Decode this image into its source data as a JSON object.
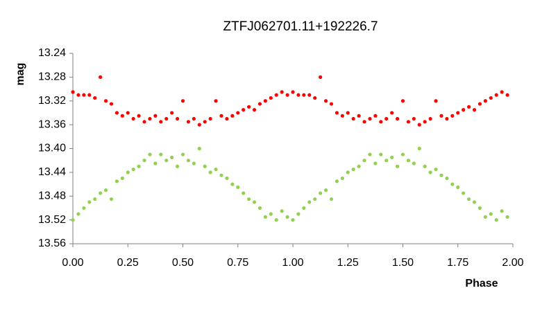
{
  "chart_data": {
    "type": "scatter",
    "title": "ZTFJ062701.11+192226.7",
    "x_label": "Phase",
    "y_label": "mag",
    "xlim": [
      0,
      2
    ],
    "xticks": [
      {
        "value": 0,
        "label": "0.00"
      },
      0.25,
      {
        "value": 0.5,
        "label": "0.50"
      },
      0.75,
      {
        "value": 1,
        "label": "1.00"
      },
      1.25,
      {
        "value": 1.5,
        "label": "1.50"
      },
      1.75,
      {
        "value": 2,
        "label": "2.00"
      }
    ],
    "ylim": [
      13.24,
      13.56
    ],
    "yticks": [
      13.24,
      13.28,
      13.32,
      13.36,
      {
        "value": 13.4,
        "label": "13.40"
      },
      13.44,
      13.48,
      13.52,
      13.56
    ],
    "y_inverted": true,
    "grid": false,
    "x": [
      0,
      0.025,
      0.05,
      0.075,
      0.1,
      0.125,
      0.15,
      0.175,
      0.2,
      0.225,
      0.25,
      0.275,
      0.3,
      0.325,
      0.35,
      0.375,
      0.4,
      0.425,
      0.45,
      0.475,
      0.5,
      0.525,
      0.55,
      0.575,
      0.6,
      0.625,
      0.65,
      0.675,
      0.7,
      0.725,
      0.75,
      0.775,
      0.8,
      0.825,
      0.85,
      0.875,
      0.9,
      0.925,
      0.95,
      0.975,
      1,
      1.025,
      1.05,
      1.075,
      1.1,
      1.125,
      1.15,
      1.175,
      1.2,
      1.225,
      1.25,
      1.275,
      1.3,
      1.325,
      1.35,
      1.375,
      1.4,
      1.425,
      1.45,
      1.475,
      1.5,
      1.525,
      1.55,
      1.575,
      1.6,
      1.625,
      1.65,
      1.675,
      1.7,
      1.725,
      1.75,
      1.775,
      1.8,
      1.825,
      1.85,
      1.875,
      1.9,
      1.925,
      1.95,
      1.975
    ],
    "series": [
      {
        "color": "#ff0000",
        "values": [
          13.305,
          13.31,
          13.31,
          13.31,
          13.315,
          13.28,
          13.32,
          13.325,
          13.34,
          13.345,
          13.34,
          13.35,
          13.345,
          13.355,
          13.35,
          13.345,
          13.355,
          13.35,
          13.34,
          13.35,
          13.32,
          13.355,
          13.35,
          13.36,
          13.355,
          13.35,
          13.32,
          13.345,
          13.35,
          13.345,
          13.34,
          13.335,
          13.33,
          13.335,
          13.325,
          13.32,
          13.315,
          13.31,
          13.305,
          13.31,
          13.305,
          13.31,
          13.31,
          13.31,
          13.315,
          13.28,
          13.32,
          13.325,
          13.34,
          13.345,
          13.34,
          13.35,
          13.345,
          13.355,
          13.35,
          13.345,
          13.355,
          13.35,
          13.34,
          13.35,
          13.32,
          13.355,
          13.35,
          13.36,
          13.355,
          13.35,
          13.32,
          13.345,
          13.35,
          13.345,
          13.34,
          13.335,
          13.33,
          13.335,
          13.325,
          13.32,
          13.315,
          13.31,
          13.305,
          13.31
        ]
      },
      {
        "color": "#92d050",
        "values": [
          13.52,
          13.51,
          13.5,
          13.49,
          13.485,
          13.475,
          13.47,
          13.485,
          13.455,
          13.45,
          13.44,
          13.435,
          13.43,
          13.42,
          13.41,
          13.425,
          13.41,
          13.42,
          13.415,
          13.43,
          13.41,
          13.42,
          13.425,
          13.4,
          13.43,
          13.44,
          13.435,
          13.445,
          13.45,
          13.46,
          13.465,
          13.475,
          13.485,
          13.49,
          13.5,
          13.515,
          13.51,
          13.52,
          13.505,
          13.515,
          13.52,
          13.51,
          13.5,
          13.49,
          13.485,
          13.475,
          13.47,
          13.485,
          13.455,
          13.45,
          13.44,
          13.435,
          13.43,
          13.42,
          13.41,
          13.425,
          13.41,
          13.42,
          13.415,
          13.43,
          13.41,
          13.42,
          13.425,
          13.4,
          13.43,
          13.44,
          13.435,
          13.445,
          13.45,
          13.46,
          13.465,
          13.475,
          13.485,
          13.49,
          13.5,
          13.515,
          13.51,
          13.52,
          13.505,
          13.515
        ]
      }
    ]
  }
}
